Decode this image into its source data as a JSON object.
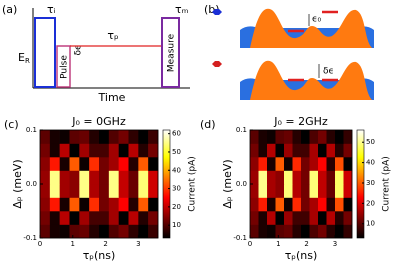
{
  "diagram_a": {
    "label": "(a)",
    "y_label": "E",
    "y_label_sub": "R",
    "x_label": "Time",
    "tau_i": "τᵢ",
    "pulse": "Pulse",
    "delta_eps": "δϵ",
    "tau_p": "τₚ",
    "tau_m": "τₘ",
    "measure": "Measure"
  },
  "diagram_b": {
    "label": "(b)",
    "eps0": "ϵ₀",
    "delta_eps": "δϵ"
  },
  "chart_data": [
    {
      "type": "heatmap",
      "panel": "(c)",
      "title": "J₀ = 0GHz",
      "xlabel": "τₚ(ns)",
      "ylabel": "Δₚ (meV)",
      "colorbar_label": "Current (pA)",
      "colormap": "hot",
      "xbins": [
        0,
        0.3,
        0.6,
        0.9,
        1.2,
        1.5,
        1.8,
        2.1,
        2.4,
        2.7,
        3.0,
        3.3,
        3.6
      ],
      "ybins": [
        -0.1,
        -0.075,
        -0.05,
        -0.025,
        0,
        0.025,
        0.05,
        0.075,
        0.1
      ],
      "values": [
        [
          11,
          5,
          4,
          11,
          12,
          6,
          3,
          10,
          13,
          7,
          3,
          8
        ],
        [
          13,
          5,
          19,
          3,
          17,
          9,
          9,
          17,
          3,
          19,
          6,
          13
        ],
        [
          15,
          27,
          5,
          33,
          4,
          29,
          13,
          17,
          25,
          6,
          33,
          3
        ],
        [
          16,
          55,
          17,
          15,
          55,
          18,
          13,
          55,
          20,
          12,
          54,
          21
        ],
        [
          16,
          55,
          17,
          15,
          55,
          18,
          13,
          55,
          20,
          12,
          54,
          21
        ],
        [
          15,
          27,
          5,
          33,
          4,
          29,
          13,
          17,
          25,
          6,
          33,
          3
        ],
        [
          13,
          5,
          19,
          3,
          17,
          9,
          9,
          17,
          3,
          19,
          6,
          13
        ],
        [
          11,
          5,
          4,
          11,
          12,
          6,
          3,
          10,
          13,
          7,
          3,
          8
        ]
      ],
      "xlim": [
        0,
        3.6
      ],
      "xticks": [
        0,
        1,
        2,
        3
      ],
      "ylim": [
        -0.1,
        0.1
      ],
      "yticks": [
        -0.1,
        {
          "value": 0,
          "label": "0.0"
        },
        0.1
      ],
      "clim": [
        3,
        62
      ],
      "cticks": [
        10,
        20,
        30,
        40,
        50,
        60
      ]
    },
    {
      "type": "heatmap",
      "panel": "(d)",
      "title": "J₀ = 2GHz",
      "xlabel": "τₚ(ns)",
      "ylabel": "Δₚ (meV)",
      "colorbar_label": "Current (pA)",
      "colormap": "hot",
      "xbins": [
        0,
        0.3,
        0.6,
        0.9,
        1.2,
        1.5,
        1.8,
        2.1,
        2.4,
        2.7,
        3.0,
        3.3,
        3.6
      ],
      "ybins": [
        -0.1,
        -0.075,
        -0.05,
        -0.025,
        0,
        0.025,
        0.05,
        0.075,
        0.1
      ],
      "values": [
        [
          10,
          5,
          4,
          10,
          11,
          6,
          3,
          9,
          12,
          6,
          3,
          7
        ],
        [
          12,
          5,
          17,
          3,
          15,
          8,
          8,
          16,
          3,
          17,
          6,
          12
        ],
        [
          14,
          25,
          5,
          30,
          4,
          26,
          12,
          16,
          23,
          6,
          29,
          3
        ],
        [
          15,
          50,
          16,
          14,
          49,
          17,
          12,
          49,
          18,
          11,
          48,
          19
        ],
        [
          15,
          50,
          16,
          14,
          49,
          17,
          12,
          49,
          18,
          11,
          48,
          19
        ],
        [
          14,
          25,
          5,
          30,
          4,
          26,
          12,
          16,
          23,
          6,
          29,
          3
        ],
        [
          12,
          5,
          17,
          3,
          15,
          8,
          8,
          16,
          3,
          17,
          6,
          12
        ],
        [
          10,
          5,
          4,
          10,
          11,
          6,
          3,
          9,
          12,
          6,
          3,
          7
        ]
      ],
      "xlim": [
        0,
        3.6
      ],
      "xticks": [
        0,
        1,
        2,
        3
      ],
      "ylim": [
        -0.1,
        0.1
      ],
      "yticks": [
        -0.1,
        {
          "value": 0,
          "label": "0.0"
        },
        0.1
      ],
      "clim": [
        3,
        56
      ],
      "cticks": [
        10,
        20,
        30,
        40,
        50
      ]
    }
  ]
}
